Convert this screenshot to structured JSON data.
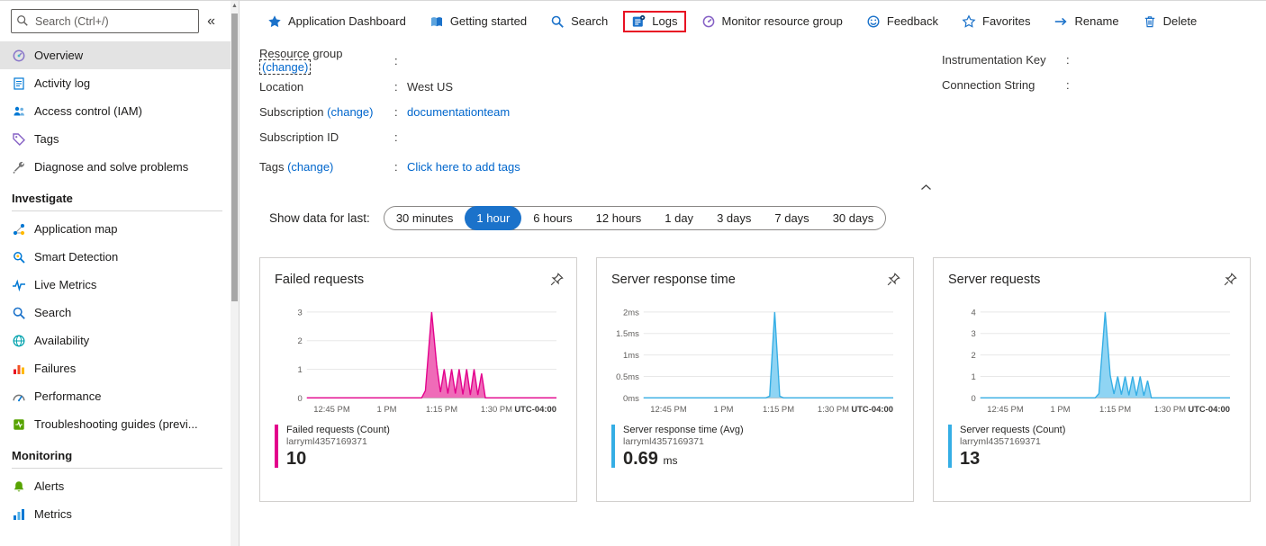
{
  "colors": {
    "accent": "#1b72ca",
    "highlight_box": "#e81123",
    "link": "#0066cc",
    "selected_item_bg": "#e3e3e3"
  },
  "sidebar": {
    "search_placeholder": "Search (Ctrl+/)",
    "collapse_glyph": "«",
    "groups": [
      {
        "header": null,
        "items": [
          {
            "label": "Overview",
            "icon": "overview",
            "selected": true
          },
          {
            "label": "Activity log",
            "icon": "activity-log"
          },
          {
            "label": "Access control (IAM)",
            "icon": "access-control"
          },
          {
            "label": "Tags",
            "icon": "tags"
          },
          {
            "label": "Diagnose and solve problems",
            "icon": "diagnose"
          }
        ]
      },
      {
        "header": "Investigate",
        "items": [
          {
            "label": "Application map",
            "icon": "application-map"
          },
          {
            "label": "Smart Detection",
            "icon": "smart-detection"
          },
          {
            "label": "Live Metrics",
            "icon": "live-metrics"
          },
          {
            "label": "Search",
            "icon": "search"
          },
          {
            "label": "Availability",
            "icon": "availability"
          },
          {
            "label": "Failures",
            "icon": "failures"
          },
          {
            "label": "Performance",
            "icon": "performance"
          },
          {
            "label": "Troubleshooting guides (previ...",
            "icon": "troubleshooting"
          }
        ]
      },
      {
        "header": "Monitoring",
        "items": [
          {
            "label": "Alerts",
            "icon": "alerts"
          },
          {
            "label": "Metrics",
            "icon": "metrics"
          }
        ]
      }
    ]
  },
  "toolbar": {
    "items": [
      {
        "label": "Application Dashboard",
        "icon": "dashboard-star"
      },
      {
        "label": "Getting started",
        "icon": "getting-started"
      },
      {
        "label": "Search",
        "icon": "search"
      },
      {
        "label": "Logs",
        "icon": "logs",
        "highlighted": true
      },
      {
        "label": "Monitor resource group",
        "icon": "monitor-gauge"
      },
      {
        "label": "Feedback",
        "icon": "feedback-smiley"
      },
      {
        "label": "Favorites",
        "icon": "favorites-star"
      },
      {
        "label": "Rename",
        "icon": "rename-arrow"
      },
      {
        "label": "Delete",
        "icon": "delete-trash"
      }
    ]
  },
  "essentials": {
    "left": [
      {
        "label": "Resource group",
        "change": "(change)",
        "change_focused": true,
        "value": "",
        "link": false
      },
      {
        "label": "Location",
        "change": "",
        "value": "West US",
        "link": false
      },
      {
        "label": "Subscription",
        "change": "(change)",
        "value": "documentationteam",
        "link": true
      },
      {
        "label": "Subscription ID",
        "change": "",
        "value": "",
        "link": false
      },
      {
        "label": "Tags",
        "change": "(change)",
        "value": "Click here to add tags",
        "link": true,
        "extra_margin": true
      }
    ],
    "right": [
      {
        "label": "Instrumentation Key",
        "value": ""
      },
      {
        "label": "Connection String",
        "value": ""
      }
    ]
  },
  "time_filter": {
    "label": "Show data for last:",
    "options": [
      "30 minutes",
      "1 hour",
      "6 hours",
      "12 hours",
      "1 day",
      "3 days",
      "7 days",
      "30 days"
    ],
    "selected": "1 hour"
  },
  "chart_data": [
    {
      "type": "area",
      "title": "Failed requests",
      "color": "#e3008c",
      "fill": "#ef6bb8",
      "ymax": 3,
      "yticks": [
        "0",
        "1",
        "2",
        "3"
      ],
      "xticks": [
        "12:45 PM",
        "1 PM",
        "1:15 PM",
        "1:30 PM"
      ],
      "timezone": "UTC-04:00",
      "points": [
        [
          0,
          0
        ],
        [
          0.46,
          0
        ],
        [
          0.475,
          0.25
        ],
        [
          0.5,
          3
        ],
        [
          0.52,
          1.15
        ],
        [
          0.535,
          0.2
        ],
        [
          0.55,
          1
        ],
        [
          0.565,
          0.15
        ],
        [
          0.58,
          1
        ],
        [
          0.595,
          0.15
        ],
        [
          0.61,
          1
        ],
        [
          0.625,
          0.12
        ],
        [
          0.64,
          1
        ],
        [
          0.655,
          0.1
        ],
        [
          0.67,
          1
        ],
        [
          0.685,
          0.1
        ],
        [
          0.7,
          0.85
        ],
        [
          0.715,
          0
        ],
        [
          1,
          0
        ]
      ],
      "legend": {
        "metric": "Failed requests (Count)",
        "resource": "larryml4357169371",
        "value": "10",
        "unit": ""
      }
    },
    {
      "type": "area",
      "title": "Server response time",
      "color": "#35aee5",
      "fill": "#8fd4f3",
      "ymax": 2,
      "yticks": [
        "0ms",
        "0.5ms",
        "1ms",
        "1.5ms",
        "2ms"
      ],
      "xticks": [
        "12:45 PM",
        "1 PM",
        "1:15 PM",
        "1:30 PM"
      ],
      "timezone": "UTC-04:00",
      "points": [
        [
          0,
          0
        ],
        [
          0.49,
          0
        ],
        [
          0.505,
          0.04
        ],
        [
          0.525,
          2
        ],
        [
          0.545,
          0.04
        ],
        [
          0.56,
          0
        ],
        [
          1,
          0
        ]
      ],
      "legend": {
        "metric": "Server response time (Avg)",
        "resource": "larryml4357169371",
        "value": "0.69",
        "unit": "ms"
      }
    },
    {
      "type": "area",
      "title": "Server requests",
      "color": "#35aee5",
      "fill": "#8fd4f3",
      "ymax": 4,
      "yticks": [
        "0",
        "1",
        "2",
        "3",
        "4"
      ],
      "xticks": [
        "12:45 PM",
        "1 PM",
        "1:15 PM",
        "1:30 PM"
      ],
      "timezone": "UTC-04:00",
      "points": [
        [
          0,
          0
        ],
        [
          0.46,
          0
        ],
        [
          0.475,
          0.2
        ],
        [
          0.5,
          4
        ],
        [
          0.52,
          1.05
        ],
        [
          0.535,
          0.18
        ],
        [
          0.55,
          1
        ],
        [
          0.565,
          0.15
        ],
        [
          0.58,
          1
        ],
        [
          0.595,
          0.12
        ],
        [
          0.61,
          1
        ],
        [
          0.625,
          0.1
        ],
        [
          0.64,
          1
        ],
        [
          0.655,
          0.1
        ],
        [
          0.67,
          0.8
        ],
        [
          0.685,
          0
        ],
        [
          1,
          0
        ]
      ],
      "legend": {
        "metric": "Server requests (Count)",
        "resource": "larryml4357169371",
        "value": "13",
        "unit": ""
      }
    }
  ]
}
